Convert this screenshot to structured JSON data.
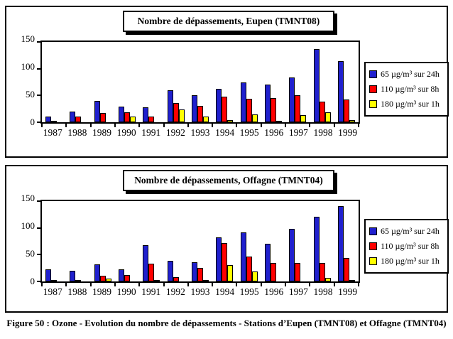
{
  "figure": {
    "caption": "Figure 50 : Ozone - Evolution du nombre de dépassements - Stations d’Eupen (TMNT08) et Offagne (TMNT04)"
  },
  "colors": {
    "blue_24h": "#2020ce",
    "red_8h": "#ff0000",
    "yellow_1h": "#ffff00",
    "outline": "#000000"
  },
  "chart_data": [
    {
      "type": "bar",
      "title": "Nombre de dépassements, Eupen (TMNT08)",
      "categories": [
        "1987",
        "1988",
        "1989",
        "1990",
        "1991",
        "1992",
        "1993",
        "1994",
        "1995",
        "1996",
        "1997",
        "1998",
        "1999"
      ],
      "series": [
        {
          "name": "65 µg/m³ sur 24h",
          "color": "#2020ce",
          "values": [
            10,
            20,
            40,
            29,
            28,
            60,
            51,
            62,
            74,
            70,
            83,
            137,
            114
          ]
        },
        {
          "name": "110 µg/m³ sur 8h",
          "color": "#ff0000",
          "values": [
            3,
            10,
            17,
            18,
            10,
            36,
            30,
            48,
            44,
            45,
            50,
            39,
            42
          ]
        },
        {
          "name": "180 µg/m³ sur 1h",
          "color": "#ffff00",
          "values": [
            0,
            0,
            0,
            10,
            0,
            24,
            11,
            4,
            14,
            3,
            13,
            18,
            4
          ]
        }
      ],
      "xlabel": "",
      "ylabel": "",
      "ylim": [
        0,
        150
      ],
      "yticks": [
        0,
        50,
        100,
        150
      ],
      "grid": false,
      "legend_position": "right"
    },
    {
      "type": "bar",
      "title": "Nombre de dépassements, Offagne (TMNT04)",
      "categories": [
        "1987",
        "1988",
        "1989",
        "1990",
        "1991",
        "1992",
        "1993",
        "1994",
        "1995",
        "1996",
        "1997",
        "1998",
        "1999"
      ],
      "series": [
        {
          "name": "65 µg/m³ sur 24h",
          "color": "#2020ce",
          "values": [
            22,
            20,
            32,
            23,
            68,
            38,
            36,
            82,
            92,
            70,
            98,
            121,
            141
          ]
        },
        {
          "name": "110 µg/m³ sur 8h",
          "color": "#ff0000",
          "values": [
            3,
            2,
            11,
            12,
            33,
            8,
            25,
            72,
            46,
            35,
            35,
            35,
            44
          ]
        },
        {
          "name": "180 µg/m³ sur 1h",
          "color": "#ffff00",
          "values": [
            0,
            0,
            5,
            0,
            3,
            0,
            2,
            31,
            19,
            0,
            0,
            6,
            3
          ]
        }
      ],
      "xlabel": "",
      "ylabel": "",
      "ylim": [
        0,
        150
      ],
      "yticks": [
        0,
        50,
        100,
        150
      ],
      "grid": false,
      "legend_position": "right"
    }
  ]
}
